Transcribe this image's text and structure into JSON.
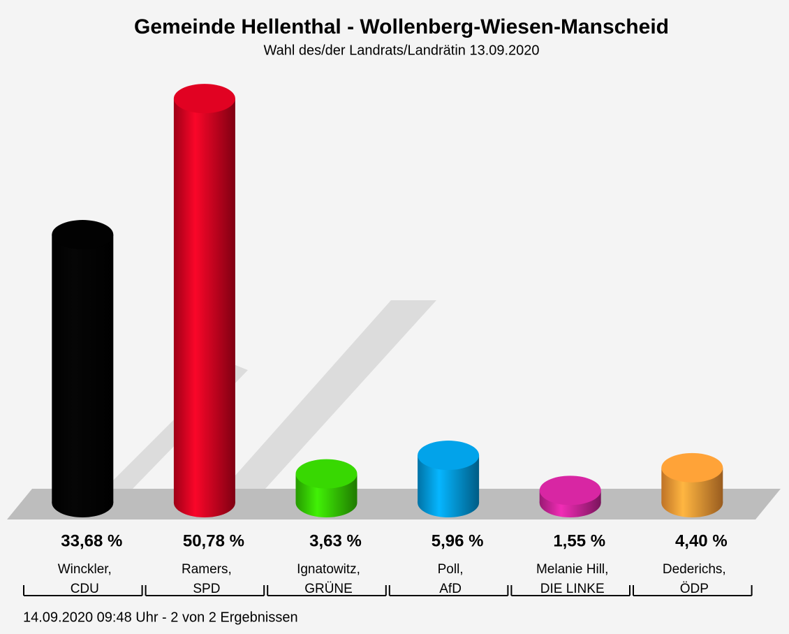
{
  "chart_data": {
    "type": "bar",
    "title": "Gemeinde Hellenthal - Wollenberg-Wiesen-Manscheid",
    "subtitle": "Wahl des/der Landrats/Landrätin 13.09.2020",
    "categories": [
      [
        "Winckler,",
        "CDU"
      ],
      [
        "Ramers,",
        "SPD"
      ],
      [
        "Ignatowitz,",
        "GRÜNE"
      ],
      [
        "Poll,",
        "AfD"
      ],
      [
        "Melanie Hill,",
        "DIE LINKE"
      ],
      [
        "Dederichs,",
        "ÖDP"
      ]
    ],
    "values": [
      33.68,
      50.78,
      3.63,
      5.96,
      1.55,
      4.4
    ],
    "value_labels": [
      "33,68 %",
      "50,78 %",
      "3,63 %",
      "5,96 %",
      "1,55 %",
      "4,40 %"
    ],
    "colors": [
      "#000000",
      "#d4001e",
      "#33cc00",
      "#0099dd",
      "#cc2299",
      "#ff9933"
    ],
    "footer": "14.09.2020 09:48 Uhr - 2 von 2 Ergebnissen"
  }
}
